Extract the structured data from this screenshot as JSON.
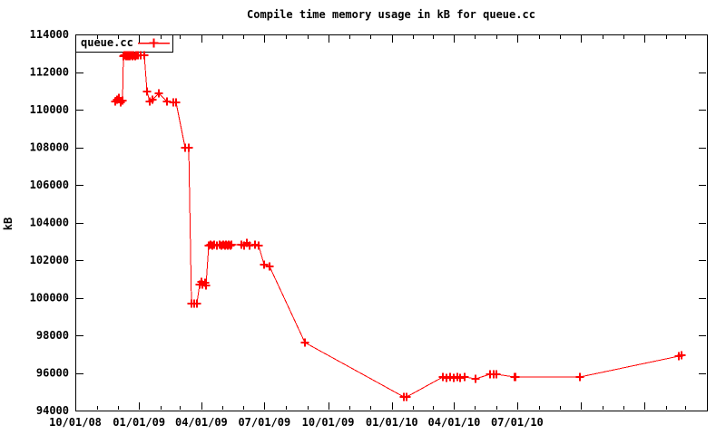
{
  "title": "Compile time memory usage in kB for queue.cc",
  "chart_data": {
    "type": "line",
    "title": "Compile time memory usage in kB for queue.cc",
    "xlabel": "",
    "ylabel": "kB",
    "grid": false,
    "background_color": "#ffffff",
    "axis_color": "#000000",
    "ylim": [
      94000,
      114000
    ],
    "y_ticks": [
      [
        94000,
        "94000"
      ],
      [
        96000,
        "96000"
      ],
      [
        98000,
        "98000"
      ],
      [
        100000,
        "100000"
      ],
      [
        102000,
        "102000"
      ],
      [
        104000,
        "104000"
      ],
      [
        106000,
        "106000"
      ],
      [
        108000,
        "108000"
      ],
      [
        110000,
        "110000"
      ],
      [
        112000,
        "112000"
      ],
      [
        114000,
        "114000"
      ]
    ],
    "x_range": [
      "2008-10-01",
      "2011-04-01"
    ],
    "x_major_ticks": [
      [
        "2008-10-01",
        "10/01/08"
      ],
      [
        "2009-01-01",
        "01/01/09"
      ],
      [
        "2009-04-01",
        "04/01/09"
      ],
      [
        "2009-07-01",
        "07/01/09"
      ],
      [
        "2009-10-01",
        "10/01/09"
      ],
      [
        "2010-01-01",
        "01/01/10"
      ],
      [
        "2010-04-01",
        "04/01/10"
      ],
      [
        "2010-07-01",
        "07/01/10"
      ],
      [
        "2010-10-01",
        ""
      ],
      [
        "2011-01-01",
        ""
      ]
    ],
    "x_minor_tick_unit": "month",
    "legend": {
      "position": "top-left",
      "box": true
    },
    "series": [
      {
        "name": "queue.cc",
        "color": "#ff0000",
        "marker": "plus",
        "points": [
          [
            "2008-11-27",
            110450
          ],
          [
            "2008-11-30",
            110550
          ],
          [
            "2008-12-03",
            110650
          ],
          [
            "2008-12-05",
            110400
          ],
          [
            "2008-12-08",
            110500
          ],
          [
            "2008-12-09",
            112850
          ],
          [
            "2008-12-11",
            112900
          ],
          [
            "2008-12-12",
            112900
          ],
          [
            "2008-12-13",
            112850
          ],
          [
            "2008-12-14",
            112900
          ],
          [
            "2008-12-15",
            112900
          ],
          [
            "2008-12-16",
            112850
          ],
          [
            "2008-12-17",
            112900
          ],
          [
            "2008-12-18",
            112900
          ],
          [
            "2008-12-19",
            112850
          ],
          [
            "2008-12-20",
            112900
          ],
          [
            "2008-12-21",
            112900
          ],
          [
            "2008-12-22",
            112850
          ],
          [
            "2008-12-23",
            112900
          ],
          [
            "2008-12-24",
            112900
          ],
          [
            "2008-12-26",
            112850
          ],
          [
            "2008-12-28",
            112900
          ],
          [
            "2008-12-30",
            112900
          ],
          [
            "2009-01-03",
            112900
          ],
          [
            "2009-01-08",
            112900
          ],
          [
            "2009-01-13",
            110950
          ],
          [
            "2009-01-16",
            110450
          ],
          [
            "2009-01-20",
            110550
          ],
          [
            "2009-01-29",
            110850
          ],
          [
            "2009-02-10",
            110450
          ],
          [
            "2009-02-20",
            110400
          ],
          [
            "2009-02-23",
            110400
          ],
          [
            "2009-03-09",
            108000
          ],
          [
            "2009-03-14",
            108000
          ],
          [
            "2009-03-18",
            99700
          ],
          [
            "2009-03-22",
            99700
          ],
          [
            "2009-03-26",
            99700
          ],
          [
            "2009-03-29",
            100700
          ],
          [
            "2009-04-01",
            100820
          ],
          [
            "2009-04-03",
            100700
          ],
          [
            "2009-04-06",
            100780
          ],
          [
            "2009-04-08",
            100650
          ],
          [
            "2009-04-11",
            102750
          ],
          [
            "2009-04-14",
            102800
          ],
          [
            "2009-04-17",
            102750
          ],
          [
            "2009-04-20",
            102800
          ],
          [
            "2009-04-23",
            102780
          ],
          [
            "2009-04-27",
            102800
          ],
          [
            "2009-04-30",
            102750
          ],
          [
            "2009-05-03",
            102800
          ],
          [
            "2009-05-05",
            102780
          ],
          [
            "2009-05-07",
            102800
          ],
          [
            "2009-05-09",
            102750
          ],
          [
            "2009-05-11",
            102800
          ],
          [
            "2009-05-13",
            102780
          ],
          [
            "2009-05-15",
            102800
          ],
          [
            "2009-05-29",
            102800
          ],
          [
            "2009-06-02",
            102780
          ],
          [
            "2009-06-06",
            102900
          ],
          [
            "2009-06-09",
            102780
          ],
          [
            "2009-06-17",
            102800
          ],
          [
            "2009-06-23",
            102780
          ],
          [
            "2009-07-01",
            101750
          ],
          [
            "2009-07-08",
            101650
          ],
          [
            "2009-08-28",
            97600
          ],
          [
            "2010-01-18",
            94720
          ],
          [
            "2010-01-22",
            94700
          ],
          [
            "2010-03-16",
            95800
          ],
          [
            "2010-03-21",
            95750
          ],
          [
            "2010-03-26",
            95800
          ],
          [
            "2010-03-31",
            95750
          ],
          [
            "2010-04-05",
            95800
          ],
          [
            "2010-04-10",
            95750
          ],
          [
            "2010-04-16",
            95800
          ],
          [
            "2010-05-02",
            95680
          ],
          [
            "2010-05-23",
            95930
          ],
          [
            "2010-05-28",
            95950
          ],
          [
            "2010-06-01",
            95930
          ],
          [
            "2010-06-27",
            95800
          ],
          [
            "2010-06-29",
            95780
          ],
          [
            "2010-09-30",
            95800
          ],
          [
            "2011-02-20",
            96900
          ],
          [
            "2011-02-23",
            96950
          ]
        ]
      }
    ]
  }
}
